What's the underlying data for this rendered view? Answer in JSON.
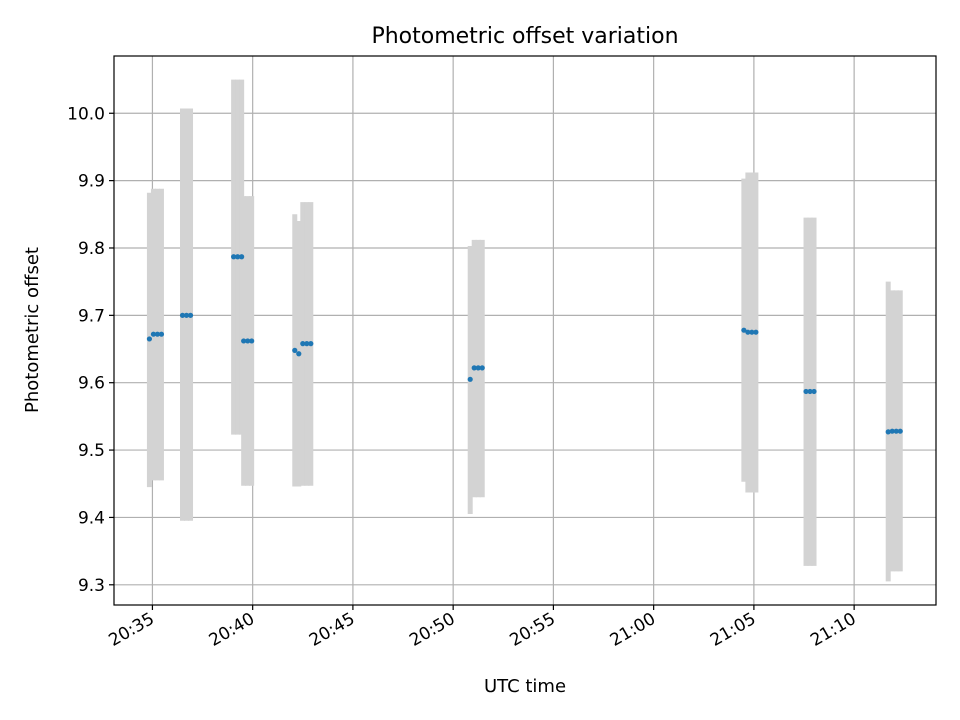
{
  "chart_data": {
    "type": "scatter",
    "title": "Photometric offset variation",
    "xlabel": "UTC time",
    "ylabel": "Photometric offset",
    "x_ticks": [
      "20:35",
      "20:40",
      "20:45",
      "20:50",
      "20:55",
      "21:00",
      "21:05",
      "21:10"
    ],
    "y_ticks": [
      "9.3",
      "9.4",
      "9.5",
      "9.6",
      "9.7",
      "9.8",
      "9.9",
      "10.0"
    ],
    "xlim": [
      "20:33:05",
      "21:14:05"
    ],
    "ylim": [
      9.27,
      10.085
    ],
    "grid": true,
    "colors": {
      "point": "#1f77b4",
      "errorbar": "#d3d3d3",
      "grid": "#b0b0b0",
      "axes": "#000000"
    },
    "points": [
      {
        "x": "20:34:51",
        "y": 9.665,
        "err_low": 9.445,
        "err_high": 9.882
      },
      {
        "x": "20:35:03",
        "y": 9.672,
        "err_low": 9.455,
        "err_high": 9.888
      },
      {
        "x": "20:35:15",
        "y": 9.672,
        "err_low": 9.455,
        "err_high": 9.888
      },
      {
        "x": "20:35:27",
        "y": 9.672,
        "err_low": 9.455,
        "err_high": 9.888
      },
      {
        "x": "20:36:30",
        "y": 9.7,
        "err_low": 9.395,
        "err_high": 10.007
      },
      {
        "x": "20:36:42",
        "y": 9.7,
        "err_low": 9.395,
        "err_high": 10.007
      },
      {
        "x": "20:36:54",
        "y": 9.7,
        "err_low": 9.395,
        "err_high": 10.007
      },
      {
        "x": "20:39:03",
        "y": 9.787,
        "err_low": 9.523,
        "err_high": 10.05
      },
      {
        "x": "20:39:15",
        "y": 9.787,
        "err_low": 9.523,
        "err_high": 10.05
      },
      {
        "x": "20:39:27",
        "y": 9.787,
        "err_low": 9.523,
        "err_high": 10.05
      },
      {
        "x": "20:39:33",
        "y": 9.662,
        "err_low": 9.447,
        "err_high": 9.877
      },
      {
        "x": "20:39:45",
        "y": 9.662,
        "err_low": 9.447,
        "err_high": 9.877
      },
      {
        "x": "20:39:57",
        "y": 9.662,
        "err_low": 9.447,
        "err_high": 9.877
      },
      {
        "x": "20:42:06",
        "y": 9.648,
        "err_low": 9.446,
        "err_high": 9.85
      },
      {
        "x": "20:42:18",
        "y": 9.643,
        "err_low": 9.446,
        "err_high": 9.84
      },
      {
        "x": "20:42:30",
        "y": 9.658,
        "err_low": 9.447,
        "err_high": 9.868
      },
      {
        "x": "20:42:42",
        "y": 9.658,
        "err_low": 9.447,
        "err_high": 9.868
      },
      {
        "x": "20:42:54",
        "y": 9.658,
        "err_low": 9.447,
        "err_high": 9.868
      },
      {
        "x": "20:50:51",
        "y": 9.605,
        "err_low": 9.405,
        "err_high": 9.803
      },
      {
        "x": "20:51:03",
        "y": 9.622,
        "err_low": 9.43,
        "err_high": 9.812
      },
      {
        "x": "20:51:15",
        "y": 9.622,
        "err_low": 9.43,
        "err_high": 9.812
      },
      {
        "x": "20:51:27",
        "y": 9.622,
        "err_low": 9.43,
        "err_high": 9.812
      },
      {
        "x": "21:04:30",
        "y": 9.678,
        "err_low": 9.453,
        "err_high": 9.903
      },
      {
        "x": "21:04:42",
        "y": 9.675,
        "err_low": 9.437,
        "err_high": 9.912
      },
      {
        "x": "21:04:54",
        "y": 9.675,
        "err_low": 9.437,
        "err_high": 9.912
      },
      {
        "x": "21:05:06",
        "y": 9.675,
        "err_low": 9.437,
        "err_high": 9.912
      },
      {
        "x": "21:07:36",
        "y": 9.587,
        "err_low": 9.328,
        "err_high": 9.845
      },
      {
        "x": "21:07:48",
        "y": 9.587,
        "err_low": 9.328,
        "err_high": 9.845
      },
      {
        "x": "21:08:00",
        "y": 9.587,
        "err_low": 9.328,
        "err_high": 9.845
      },
      {
        "x": "21:11:42",
        "y": 9.527,
        "err_low": 9.305,
        "err_high": 9.75
      },
      {
        "x": "21:11:54",
        "y": 9.528,
        "err_low": 9.32,
        "err_high": 9.737
      },
      {
        "x": "21:12:06",
        "y": 9.528,
        "err_low": 9.32,
        "err_high": 9.737
      },
      {
        "x": "21:12:18",
        "y": 9.528,
        "err_low": 9.32,
        "err_high": 9.737
      }
    ]
  }
}
